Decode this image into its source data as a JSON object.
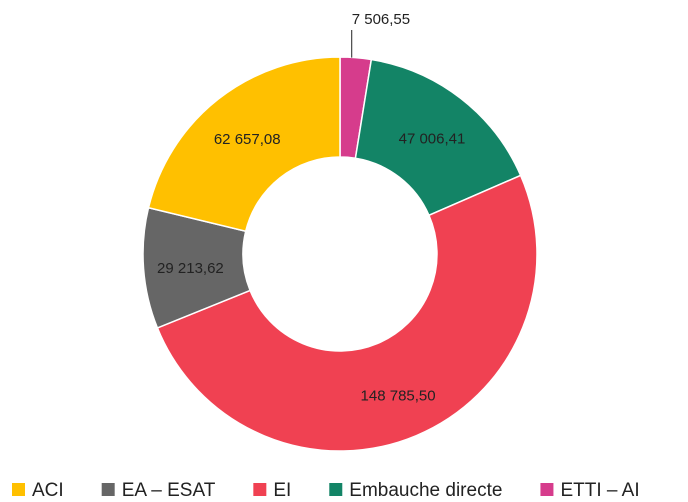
{
  "chart_data": {
    "type": "donut",
    "series": [
      {
        "name": "ACI",
        "color": "#FFC000"
      },
      {
        "name": "EA – ESAT",
        "color": "#666666"
      },
      {
        "name": "EI",
        "color": "#F04152"
      },
      {
        "name": "Embauche directe",
        "color": "#138466"
      },
      {
        "name": "ETTI – AI",
        "color": "#D63C8C"
      }
    ],
    "values": [
      62657.08,
      29213.62,
      148785.5,
      47006.41,
      7506.55
    ],
    "value_labels": [
      "62 657,08",
      "29 213,62",
      "148 785,50",
      "47 006,41",
      "7 506,55"
    ],
    "legend": "bottom"
  }
}
